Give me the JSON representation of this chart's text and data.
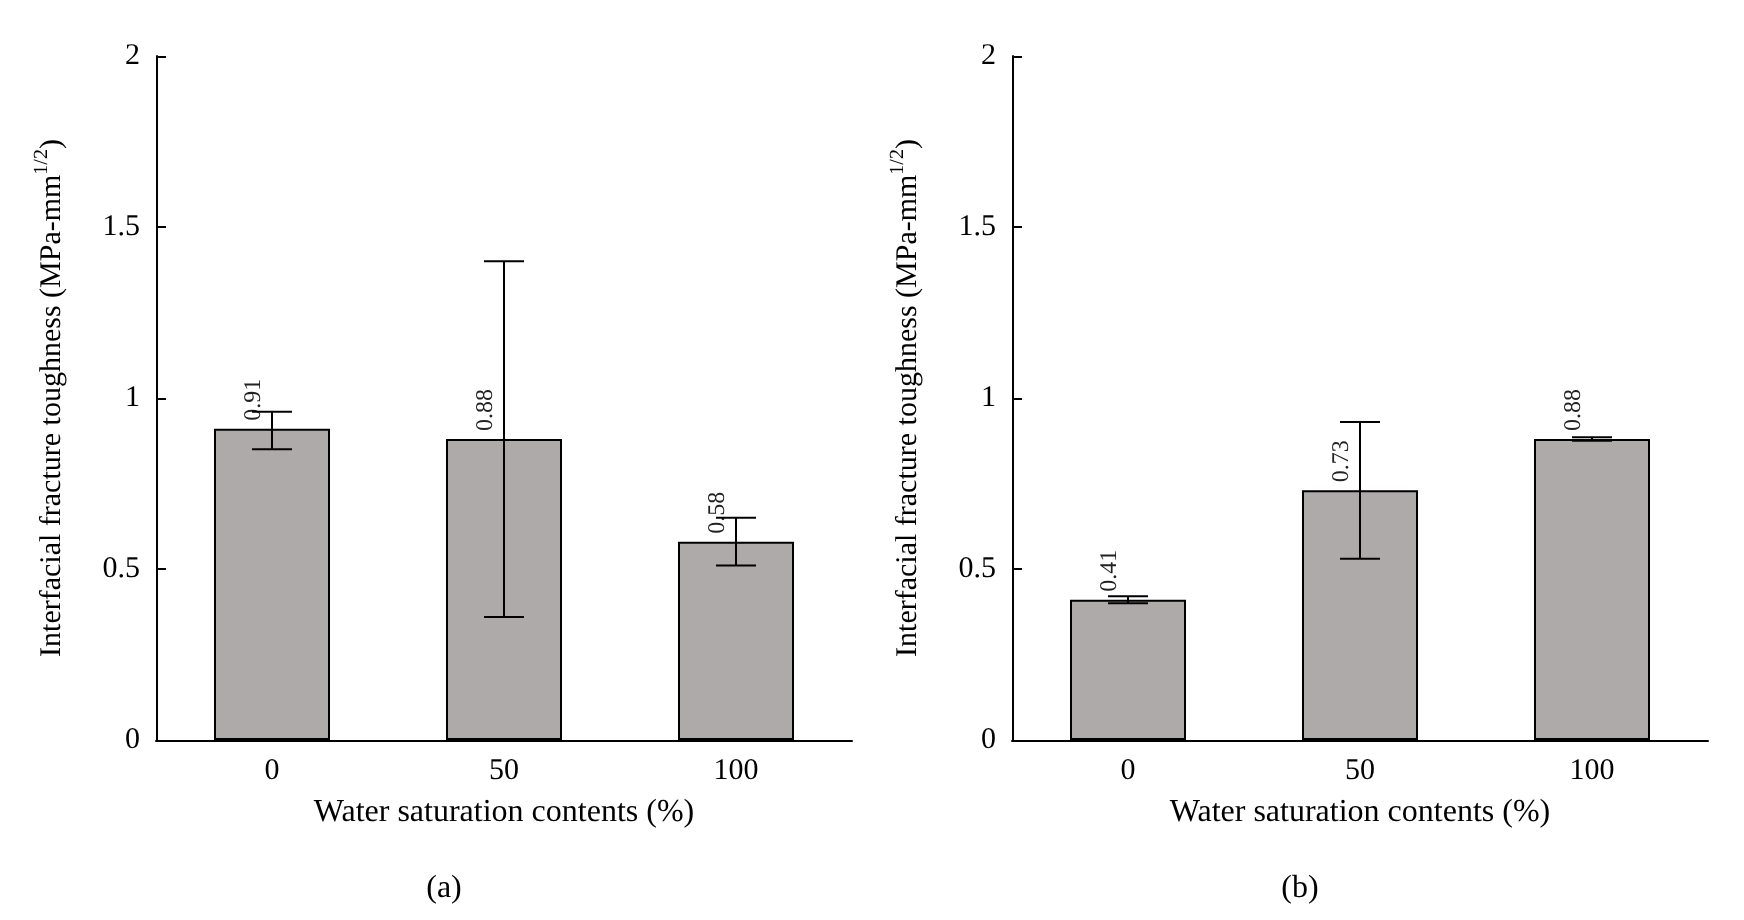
{
  "chart_data": [
    {
      "type": "bar",
      "categories": [
        "0",
        "50",
        "100"
      ],
      "values": [
        0.91,
        0.88,
        0.58
      ],
      "errors": [
        [
          0.85,
          0.96
        ],
        [
          0.36,
          1.4
        ],
        [
          0.51,
          0.65
        ]
      ],
      "color": "#aeaaa9",
      "data_labels": true,
      "ylim": [
        0,
        2
      ],
      "yticks": [
        0,
        0.5,
        1,
        1.5,
        2
      ],
      "xlabel": "Water saturation contents (%)",
      "ylabel": "Interfacial fracture toughness (MPa-mm$^{1/2}$)",
      "annotations": [
        "(a)"
      ],
      "grid": false
    },
    {
      "type": "bar",
      "categories": [
        "0",
        "50",
        "100"
      ],
      "values": [
        0.41,
        0.73,
        0.88
      ],
      "errors": [
        [
          0.4,
          0.42
        ],
        [
          0.53,
          0.93
        ],
        [
          0.875,
          0.885
        ]
      ],
      "color": "#aeaaa9",
      "data_labels": true,
      "ylim": [
        0,
        2
      ],
      "yticks": [
        0,
        0.5,
        1,
        1.5,
        2
      ],
      "xlabel": "Water saturation contents (%)",
      "ylabel": "Interfacial fracture toughness (MPa-mm$^{1/2}$)",
      "annotations": [
        "(b)"
      ],
      "grid": false
    }
  ]
}
